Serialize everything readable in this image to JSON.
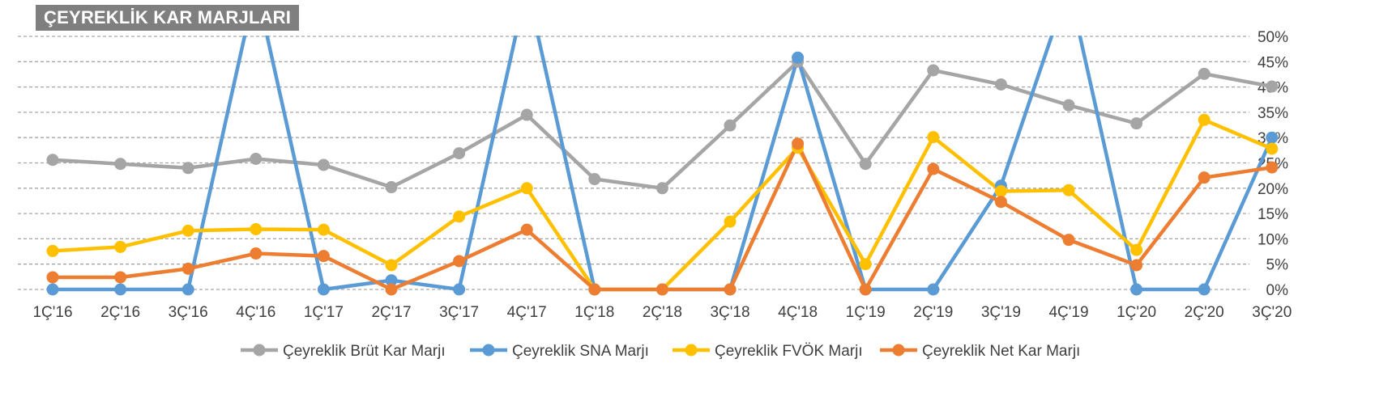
{
  "chart_data": {
    "type": "line",
    "title": "ÇEYREKLİK KAR MARJLARI",
    "x": [
      "1Ç'16",
      "2Ç'16",
      "3Ç'16",
      "4Ç'16",
      "1Ç'17",
      "2Ç'17",
      "3Ç'17",
      "4Ç'17",
      "1Ç'18",
      "2Ç'18",
      "3Ç'18",
      "4Ç'18",
      "1Ç'19",
      "2Ç'19",
      "3Ç'19",
      "4Ç'19",
      "1Ç'20",
      "2Ç'20",
      "3Ç'20"
    ],
    "ylim": [
      0,
      50
    ],
    "yticks": [
      0,
      5,
      10,
      15,
      20,
      25,
      30,
      35,
      40,
      45,
      50
    ],
    "ytick_labels": [
      "0%",
      "5%",
      "10%",
      "15%",
      "20%",
      "25%",
      "30%",
      "35%",
      "40%",
      "45%",
      "50%"
    ],
    "grid": true,
    "legend_position": "bottom",
    "series": [
      {
        "name": "Çeyreklik Brüt Kar Marjı",
        "color": "#a5a5a5",
        "values": [
          25.6,
          24.8,
          24.0,
          25.8,
          24.6,
          20.2,
          26.9,
          34.5,
          21.8,
          20.0,
          32.4,
          45.0,
          24.8,
          43.3,
          40.5,
          36.4,
          32.8,
          42.6,
          40.1
        ]
      },
      {
        "name": "Çeyreklik SNA Marjı",
        "color": "#5b9bd5",
        "values": [
          0,
          0,
          0,
          60,
          0,
          1.8,
          0,
          60,
          0,
          0,
          0,
          45.8,
          0,
          0,
          20.5,
          60,
          0,
          0,
          30.0
        ]
      },
      {
        "name": "Çeyreklik FVÖK Marjı",
        "color": "#ffc000",
        "values": [
          7.6,
          8.4,
          11.6,
          11.9,
          11.8,
          4.8,
          14.4,
          20.0,
          0,
          0,
          13.4,
          28.0,
          5.0,
          30.1,
          19.4,
          19.6,
          7.8,
          33.5,
          27.8
        ]
      },
      {
        "name": "Çeyreklik Net Kar Marjı",
        "color": "#ed7d31",
        "values": [
          2.4,
          2.4,
          4.1,
          7.1,
          6.6,
          0,
          5.6,
          11.8,
          0,
          0,
          0,
          28.8,
          0,
          23.8,
          17.3,
          9.8,
          4.8,
          22.1,
          24.1
        ]
      }
    ]
  }
}
